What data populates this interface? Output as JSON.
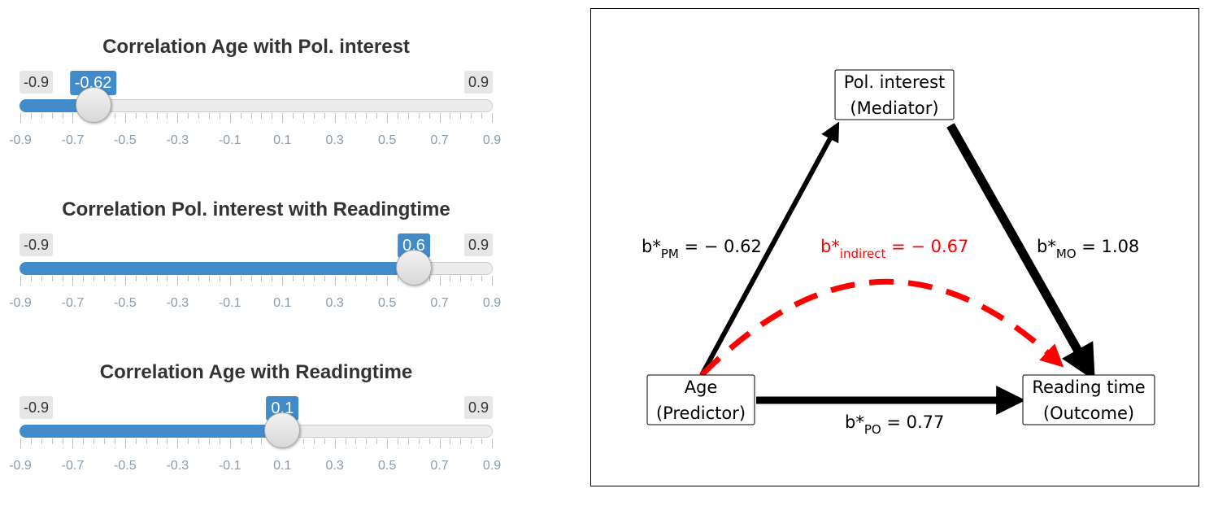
{
  "sliders": [
    {
      "title": "Correlation Age with Pol. interest",
      "min": -0.9,
      "max": 0.9,
      "value": -0.62,
      "min_label": "-0.9",
      "max_label": "0.9",
      "value_label": "-0.62",
      "ticks": [
        "-0.9",
        "-0.7",
        "-0.5",
        "-0.3",
        "-0.1",
        "0.1",
        "0.3",
        "0.5",
        "0.7",
        "0.9"
      ]
    },
    {
      "title": "Correlation Pol. interest with Readingtime",
      "min": -0.9,
      "max": 0.9,
      "value": 0.6,
      "min_label": "-0.9",
      "max_label": "0.9",
      "value_label": "0.6",
      "ticks": [
        "-0.9",
        "-0.7",
        "-0.5",
        "-0.3",
        "-0.1",
        "0.1",
        "0.3",
        "0.5",
        "0.7",
        "0.9"
      ]
    },
    {
      "title": "Correlation Age with Readingtime",
      "min": -0.9,
      "max": 0.9,
      "value": 0.1,
      "min_label": "-0.9",
      "max_label": "0.9",
      "value_label": "0.1",
      "ticks": [
        "-0.9",
        "-0.7",
        "-0.5",
        "-0.3",
        "-0.1",
        "0.1",
        "0.3",
        "0.5",
        "0.7",
        "0.9"
      ]
    }
  ],
  "diagram": {
    "nodes": {
      "mediator": {
        "line1": "Pol. interest",
        "line2": "(Mediator)"
      },
      "predictor": {
        "line1": "Age",
        "line2": "(Predictor)"
      },
      "outcome": {
        "line1": "Reading time",
        "line2": "(Outcome)"
      }
    },
    "paths": {
      "pm": {
        "prefix": "b*",
        "sub": "PM",
        "value": " = − 0.62"
      },
      "mo": {
        "prefix": "b*",
        "sub": "MO",
        "value": " = 1.08"
      },
      "po": {
        "prefix": "b*",
        "sub": "PO",
        "value": " = 0.77"
      },
      "indirect": {
        "prefix": "b*",
        "sub": "indirect",
        "value": " = − 0.67"
      }
    },
    "colors": {
      "arrow": "#000000",
      "indirect": "#ff0000"
    }
  },
  "colors": {
    "accent": "#428bca",
    "tick_label": "#8a9bab",
    "title": "#333333"
  }
}
